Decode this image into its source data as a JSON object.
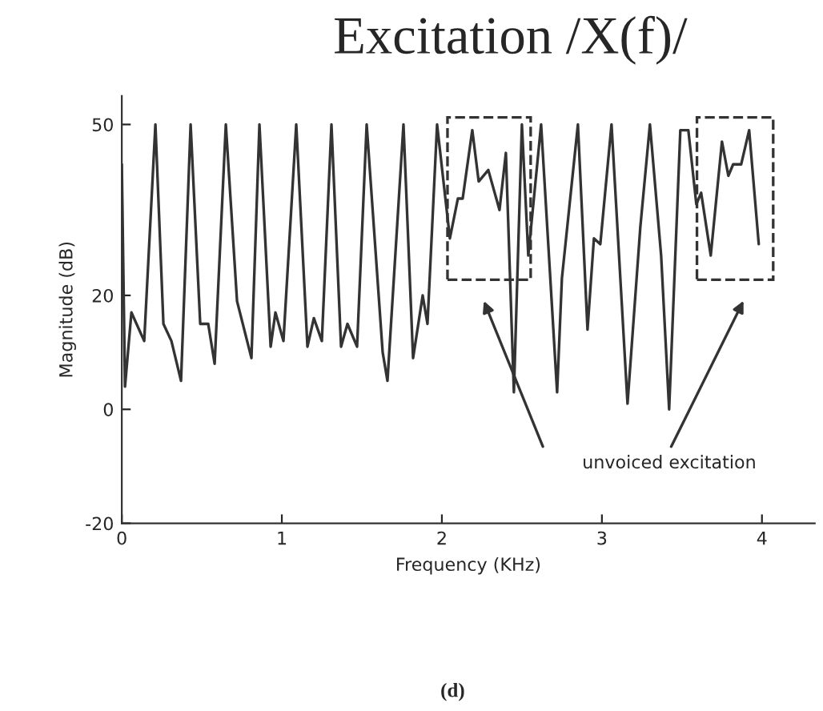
{
  "chart_data": {
    "type": "line",
    "title": "Excitation /X(f)/",
    "xlabel": "Frequency (KHz)",
    "ylabel": "Magnitude (dB)",
    "annotations": [
      "unvoiced excitation",
      "(d)"
    ],
    "xlim": [
      0,
      4.33
    ],
    "ylim": [
      -20,
      55
    ],
    "xticks": [
      0,
      1,
      2,
      3,
      4
    ],
    "yticks": [
      -20,
      0,
      20,
      50
    ],
    "grid": false,
    "legend": false,
    "marker": "none",
    "line_style": "solid",
    "series": [
      {
        "color": "#333333",
        "x": [
          0,
          0.02,
          0.06,
          0.14,
          0.21,
          0.26,
          0.31,
          0.37,
          0.43,
          0.49,
          0.54,
          0.58,
          0.65,
          0.72,
          0.81,
          0.86,
          0.93,
          0.96,
          1.01,
          1.09,
          1.16,
          1.2,
          1.25,
          1.31,
          1.37,
          1.41,
          1.47,
          1.53,
          1.63,
          1.66,
          1.76,
          1.82,
          1.88,
          1.91,
          1.97,
          2.05,
          2.1,
          2.13,
          2.19,
          2.23,
          2.29,
          2.36,
          2.4,
          2.45,
          2.5,
          2.54,
          2.62,
          2.72,
          2.75,
          2.85,
          2.91,
          2.95,
          2.99,
          3.06,
          3.16,
          3.24,
          3.3,
          3.37,
          3.42,
          3.49,
          3.54,
          3.59,
          3.62,
          3.68,
          3.75,
          3.79,
          3.82,
          3.87,
          3.92,
          3.98
        ],
        "values": [
          43,
          4,
          17,
          12,
          50,
          15,
          12,
          5,
          50,
          15,
          15,
          8,
          50,
          19,
          9,
          50,
          11,
          17,
          12,
          50,
          11,
          16,
          12,
          50,
          11,
          15,
          11,
          50,
          10,
          5,
          50,
          9,
          20,
          15,
          50,
          30,
          37,
          37,
          49,
          40,
          42,
          35,
          45,
          3,
          50,
          27,
          50,
          3,
          23,
          50,
          14,
          30,
          29,
          50,
          1,
          32,
          50,
          27,
          0,
          49,
          49,
          36,
          38,
          27,
          47,
          41,
          43,
          43,
          49,
          29
        ]
      }
    ]
  }
}
